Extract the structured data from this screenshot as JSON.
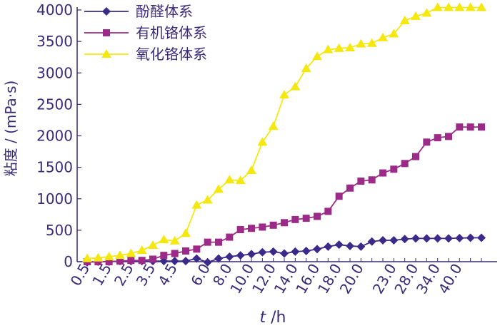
{
  "chart_data": {
    "type": "line",
    "title": "",
    "xlabel_italic": "t",
    "xlabel_rest": " /h",
    "ylabel": "粘度 / (mPa·s)",
    "ylim": [
      0,
      4000
    ],
    "yticks": [
      0,
      500,
      1000,
      1500,
      2000,
      2500,
      3000,
      3500,
      4000
    ],
    "grid": false,
    "legend_position": "top-left",
    "x_categories": [
      "0.5",
      "1.0",
      "1.5",
      "2.0",
      "2.5",
      "3.0",
      "3.5",
      "4.0",
      "4.5",
      "5.0",
      "5.5",
      "6.0",
      "7.0",
      "8.0",
      "9.0",
      "10.0",
      "11.0",
      "12.0",
      "13.0",
      "14.0",
      "15.0",
      "16.0",
      "17.0",
      "18.0",
      "19.0",
      "20.0",
      "21.0",
      "22.0",
      "23.0",
      "24.0",
      "28.0",
      "30.0",
      "34.0",
      "36.0",
      "40.0",
      "44.0",
      "48.0"
    ],
    "x_tick_labels": [
      "0.5",
      "1.5",
      "2.5",
      "3.5",
      "4.5",
      "6.0",
      "8.0",
      "10.0",
      "12.0",
      "14.0",
      "16.0",
      "18.0",
      "20.0",
      "23.0",
      "28.0",
      "34.0",
      "40.0"
    ],
    "series": [
      {
        "name": "酚醛体系",
        "color": "#3b2a8a",
        "marker": "diamond",
        "values": [
          -10,
          0,
          0,
          10,
          10,
          10,
          10,
          10,
          10,
          10,
          50,
          -10,
          50,
          80,
          100,
          120,
          150,
          160,
          130,
          160,
          170,
          200,
          240,
          270,
          250,
          240,
          320,
          340,
          340,
          360,
          370,
          370,
          370,
          370,
          375,
          380,
          380
        ]
      },
      {
        "name": "有机铬体系",
        "color": "#9c2a88",
        "marker": "square",
        "values": [
          0,
          0,
          0,
          10,
          20,
          20,
          40,
          100,
          130,
          170,
          200,
          310,
          310,
          390,
          510,
          530,
          550,
          580,
          620,
          670,
          690,
          720,
          800,
          1040,
          1170,
          1280,
          1300,
          1410,
          1470,
          1560,
          1670,
          1900,
          1970,
          1990,
          2140,
          2140,
          2140
        ]
      },
      {
        "name": "氧化铬体系",
        "color": "#f4e80e",
        "marker": "triangle",
        "values": [
          50,
          60,
          80,
          100,
          130,
          180,
          260,
          350,
          330,
          450,
          900,
          980,
          1150,
          1300,
          1290,
          1450,
          1900,
          2150,
          2650,
          2780,
          3070,
          3260,
          3370,
          3390,
          3400,
          3460,
          3470,
          3560,
          3620,
          3830,
          3900,
          3950,
          4040,
          4040,
          4040,
          4040,
          4040
        ]
      }
    ]
  }
}
